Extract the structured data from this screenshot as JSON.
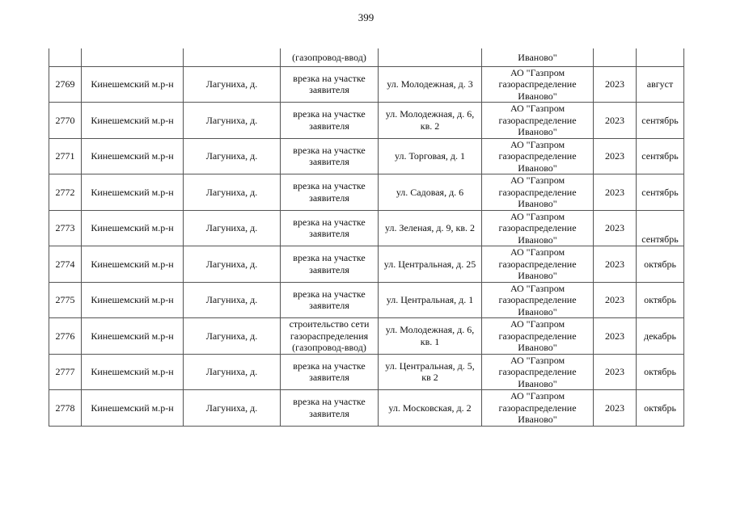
{
  "page_number": "399",
  "continued_row": [
    "",
    "",
    "",
    "(газопровод-ввод)",
    "",
    "Иваново\"",
    "",
    ""
  ],
  "rows": [
    [
      "2769",
      "Кинешемский м.р-н",
      "Лагуниха, д.",
      "врезка на участке заявителя",
      "ул. Молодежная, д. 3",
      "АО \"Газпром газораспределение Иваново\"",
      "2023",
      "август"
    ],
    [
      "2770",
      "Кинешемский м.р-н",
      "Лагуниха, д.",
      "врезка на участке заявителя",
      "ул. Молодежная, д. 6, кв. 2",
      "АО \"Газпром газораспределение Иваново\"",
      "2023",
      "сентябрь"
    ],
    [
      "2771",
      "Кинешемский м.р-н",
      "Лагуниха, д.",
      "врезка на участке заявителя",
      "ул. Торговая, д. 1",
      "АО \"Газпром газораспределение Иваново\"",
      "2023",
      "сентябрь"
    ],
    [
      "2772",
      "Кинешемский м.р-н",
      "Лагуниха, д.",
      "врезка на участке заявителя",
      "ул. Садовая, д. 6",
      "АО \"Газпром газораспределение Иваново\"",
      "2023",
      "сентябрь"
    ],
    [
      "2773",
      "Кинешемский м.р-н",
      "Лагуниха, д.",
      "врезка на участке заявителя",
      "ул. Зеленая, д. 9, кв. 2",
      "АО \"Газпром газораспределение Иваново\"",
      "2023",
      "сентябрь"
    ],
    [
      "2774",
      "Кинешемский м.р-н",
      "Лагуниха, д.",
      "врезка на участке заявителя",
      "ул. Центральная, д. 25",
      "АО \"Газпром газораспределение Иваново\"",
      "2023",
      "октябрь"
    ],
    [
      "2775",
      "Кинешемский м.р-н",
      "Лагуниха, д.",
      "врезка на участке заявителя",
      "ул. Центральная, д. 1",
      "АО \"Газпром газораспределение Иваново\"",
      "2023",
      "октябрь"
    ],
    [
      "2776",
      "Кинешемский м.р-н",
      "Лагуниха, д.",
      "строительство сети газораспределения (газопровод-ввод)",
      "ул. Молодежная, д. 6, кв. 1",
      "АО \"Газпром газораспределение Иваново\"",
      "2023",
      "декабрь"
    ],
    [
      "2777",
      "Кинешемский м.р-н",
      "Лагуниха, д.",
      "врезка на участке заявителя",
      "ул. Центральная, д. 5, кв 2",
      "АО \"Газпром газораспределение Иваново\"",
      "2023",
      "октябрь"
    ],
    [
      "2778",
      "Кинешемский м.р-н",
      "Лагуниха, д.",
      "врезка на участке заявителя",
      "ул. Московская, д. 2",
      "АО \"Газпром газораспределение Иваново\"",
      "2023",
      "октябрь"
    ]
  ]
}
